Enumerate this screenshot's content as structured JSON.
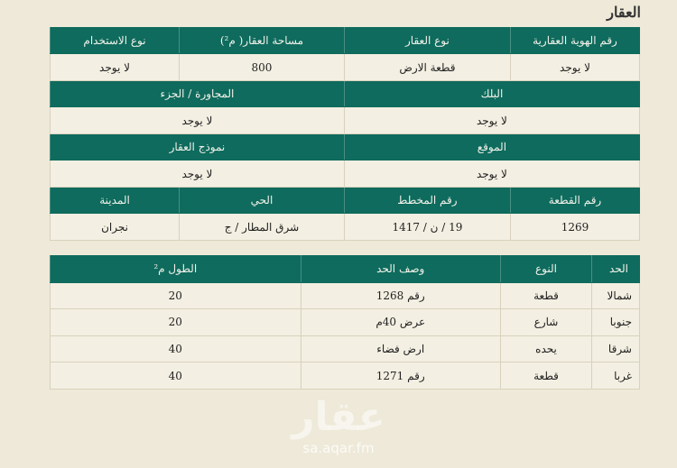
{
  "title": "العقار",
  "watermark": {
    "logo_text": "عقار",
    "url": "sa.aqar.fm"
  },
  "property_table": {
    "row1": {
      "headers": [
        "رقم الهوية العقارية",
        "نوع العقار",
        "مساحة العقار( م²)",
        "نوع الاستخدام"
      ],
      "values": [
        "لا يوجد",
        "قطعة الارض",
        "800",
        "لا يوجد"
      ]
    },
    "row2": {
      "headers": [
        "البلك",
        "المجاورة / الجزء"
      ],
      "values": [
        "لا يوجد",
        "لا يوجد"
      ]
    },
    "row3": {
      "headers": [
        "الموقع",
        "نموذج العقار"
      ],
      "values": [
        "لا يوجد",
        "لا يوجد"
      ]
    },
    "row4": {
      "headers": [
        "رقم القطعة",
        "رقم المخطط",
        "الحي",
        "المدينة"
      ],
      "values": [
        "1269",
        "19 / ن / 1417",
        "شرق المطار / ج",
        "نجران"
      ]
    }
  },
  "boundaries_table": {
    "headers": [
      "الحد",
      "النوع",
      "وصف الحد",
      "الطول م²"
    ],
    "rows": [
      [
        "شمالا",
        "قطعة",
        "رقم 1268",
        "20"
      ],
      [
        "جنوبا",
        "شارع",
        "عرض 40م",
        "20"
      ],
      [
        "شرقا",
        "يحده",
        "ارض فضاء",
        "40"
      ],
      [
        "غربا",
        "قطعة",
        "رقم 1271",
        "40"
      ]
    ]
  },
  "colors": {
    "header_bg": "#0e6b5d",
    "page_bg": "#eee9d8"
  }
}
